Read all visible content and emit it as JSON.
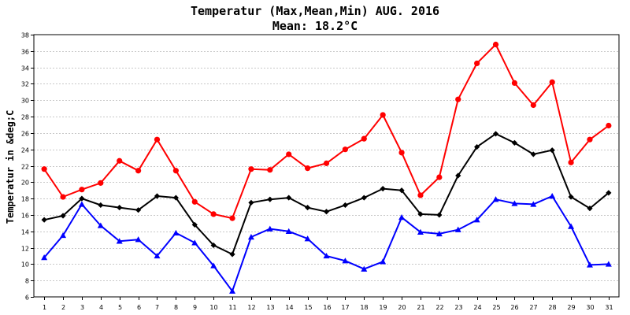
{
  "chart_data": {
    "type": "line",
    "title": "Temperatur (Max,Mean,Min) AUG. 2016",
    "subtitle": "Mean: 18.2°C",
    "xlabel": "",
    "ylabel": "Temperatur in &deg;C",
    "categories": [
      "1",
      "2",
      "3",
      "4",
      "5",
      "6",
      "7",
      "8",
      "9",
      "10",
      "11",
      "12",
      "13",
      "14",
      "15",
      "16",
      "17",
      "18",
      "19",
      "20",
      "21",
      "22",
      "23",
      "24",
      "25",
      "26",
      "27",
      "28",
      "29",
      "30",
      "31"
    ],
    "ylim": [
      6,
      38
    ],
    "yticks": [
      6,
      8,
      10,
      12,
      14,
      16,
      18,
      20,
      22,
      24,
      26,
      28,
      30,
      32,
      34,
      36,
      38
    ],
    "grid": true,
    "series": [
      {
        "color": "#ff0000",
        "marker": "circle",
        "values": [
          21.6,
          18.2,
          19.1,
          19.9,
          22.6,
          21.4,
          25.2,
          21.4,
          17.6,
          16.1,
          15.6,
          21.6,
          21.5,
          23.4,
          21.7,
          22.3,
          24.0,
          25.3,
          28.2,
          23.6,
          18.4,
          20.6,
          30.1,
          34.5,
          36.8,
          32.1,
          29.4,
          32.2,
          22.4,
          25.2,
          26.9
        ]
      },
      {
        "color": "#000000",
        "marker": "diamond",
        "values": [
          15.4,
          15.9,
          18.0,
          17.2,
          16.9,
          16.6,
          18.3,
          18.1,
          14.8,
          12.3,
          11.2,
          17.5,
          17.9,
          18.1,
          16.9,
          16.4,
          17.2,
          18.1,
          19.2,
          19.0,
          16.1,
          16.0,
          20.8,
          24.3,
          25.9,
          24.8,
          23.4,
          23.9,
          18.2,
          16.8,
          18.7
        ]
      },
      {
        "color": "#0000ff",
        "marker": "triangle",
        "values": [
          10.8,
          13.5,
          17.3,
          14.7,
          12.8,
          13.0,
          11.0,
          13.8,
          12.6,
          9.8,
          6.7,
          13.3,
          14.3,
          14.0,
          13.1,
          11.0,
          10.4,
          9.4,
          10.3,
          15.7,
          13.9,
          13.7,
          14.2,
          15.4,
          17.9,
          17.4,
          17.3,
          18.3,
          14.6,
          9.9,
          10.0
        ]
      }
    ]
  }
}
